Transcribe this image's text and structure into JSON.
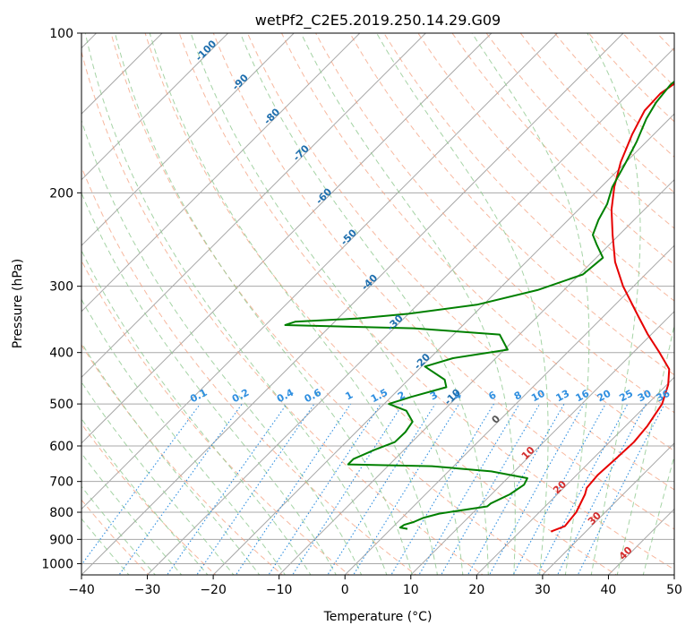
{
  "chart_data": {
    "type": "line",
    "title": "wetPf2_C2E5.2019.250.14.29.G09",
    "xlabel": "Temperature (°C)",
    "ylabel": "Pressure (hPa)",
    "xlim": [
      -40,
      50
    ],
    "ylim": [
      1050,
      100
    ],
    "y_scale": "log",
    "grid": true,
    "x_ticks": [
      -40,
      -30,
      -20,
      -10,
      0,
      10,
      20,
      30,
      40,
      50
    ],
    "y_ticks": [
      100,
      200,
      300,
      400,
      500,
      600,
      700,
      800,
      900,
      1000
    ],
    "series": [
      {
        "color": "#e60000",
        "points": [
          [
            24.7,
            870
          ],
          [
            26,
            850
          ],
          [
            25.6,
            800
          ],
          [
            24.2,
            740
          ],
          [
            23.5,
            720
          ],
          [
            23.2,
            680
          ],
          [
            23.5,
            630
          ],
          [
            23.7,
            590
          ],
          [
            23.3,
            550
          ],
          [
            22.2,
            500
          ],
          [
            20.2,
            460
          ],
          [
            18,
            430
          ],
          [
            14,
            400
          ],
          [
            9.5,
            370
          ],
          [
            5,
            340
          ],
          [
            -1.6,
            300
          ],
          [
            -6.5,
            270
          ],
          [
            -11,
            240
          ],
          [
            -15,
            215
          ],
          [
            -18,
            195
          ],
          [
            -20.8,
            175
          ],
          [
            -23.3,
            155
          ],
          [
            -25,
            140
          ],
          [
            -25.2,
            130
          ],
          [
            -24,
            120
          ],
          [
            -21,
            113
          ],
          [
            -18.5,
            107
          ],
          [
            -16.5,
            100
          ]
        ]
      },
      {
        "color": "#008000",
        "points": [
          [
            2.5,
            860
          ],
          [
            1.2,
            855
          ],
          [
            1.4,
            845
          ],
          [
            2.4,
            835
          ],
          [
            3.2,
            820
          ],
          [
            5,
            805
          ],
          [
            11.2,
            780
          ],
          [
            11.3,
            770
          ],
          [
            12.8,
            740
          ],
          [
            13.5,
            710
          ],
          [
            13,
            690
          ],
          [
            6.5,
            670
          ],
          [
            -3.3,
            655
          ],
          [
            -16.3,
            650
          ],
          [
            -16.3,
            635
          ],
          [
            -14.5,
            610
          ],
          [
            -12.6,
            590
          ],
          [
            -12.5,
            565
          ],
          [
            -13,
            540
          ],
          [
            -15.6,
            515
          ],
          [
            -19.3,
            500
          ],
          [
            -17,
            485
          ],
          [
            -13.1,
            465
          ],
          [
            -14.5,
            450
          ],
          [
            -19.5,
            425
          ],
          [
            -16.5,
            410
          ],
          [
            -9.5,
            395
          ],
          [
            -13,
            370
          ],
          [
            -27,
            360
          ],
          [
            -47,
            355
          ],
          [
            -46,
            350
          ],
          [
            -37,
            345
          ],
          [
            -30,
            338
          ],
          [
            -21,
            325
          ],
          [
            -14,
            305
          ],
          [
            -9.5,
            285
          ],
          [
            -9,
            265
          ],
          [
            -12,
            250
          ],
          [
            -14,
            240
          ],
          [
            -15.4,
            225
          ],
          [
            -16.5,
            210
          ],
          [
            -18.3,
            195
          ],
          [
            -20,
            175
          ],
          [
            -21.5,
            160
          ],
          [
            -23.5,
            145
          ],
          [
            -24.5,
            135
          ],
          [
            -25,
            125
          ],
          [
            -24.5,
            118
          ],
          [
            -22.5,
            110
          ],
          [
            -19.5,
            103
          ],
          [
            -18,
            100
          ]
        ]
      }
    ],
    "annotations": {
      "dry_adiabat_labels": [
        "-100",
        "-90",
        "-80",
        "-70",
        "-60",
        "-50",
        "-40",
        "-30",
        "-20",
        "-10",
        "0",
        "10",
        "20",
        "30",
        "40"
      ],
      "mixing_ratio_labels": [
        "0.1",
        "0.2",
        "0.4",
        "0.6",
        "1",
        "1.5",
        "2",
        "3",
        "4",
        "6",
        "8",
        "10",
        "13",
        "16",
        "20",
        "25",
        "30",
        "36"
      ]
    },
    "colors": {
      "isotherm": "#a8a8a8",
      "isobar": "#a8a8a8",
      "dry_adiabat": "#f4a07f",
      "moist_adiabat": "#8fc88f",
      "mixing_ratio": "#2f8fe0",
      "dry_label_cold": "#1f6fae",
      "dry_label_neutral": "#555555",
      "dry_label_warm": "#d42d2d",
      "mixing_label": "#2f8fe0"
    }
  }
}
